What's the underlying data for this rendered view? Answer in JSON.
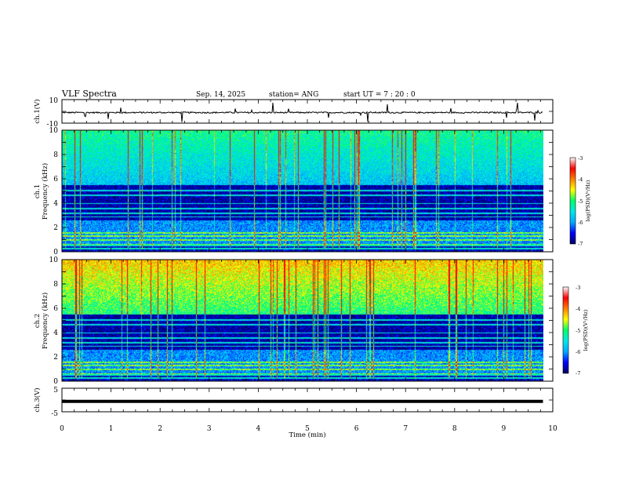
{
  "header": {
    "title": "VLF Spectra",
    "date": "Sep. 14, 2025",
    "station": "station= ANG",
    "start_ut": "start  UT =   7 : 20 : 0"
  },
  "colors": {
    "cmap": [
      "#000060",
      "#0000ff",
      "#00aaff",
      "#00e8e8",
      "#00ff66",
      "#ffff00",
      "#ff7f00",
      "#ff0000",
      "#ffffff"
    ]
  },
  "chart_data": [
    {
      "type": "line",
      "panel": "ch1-voltage",
      "ylabel": "ch.1(V)",
      "ylim": [
        -10,
        10
      ],
      "ytick_labels": [
        "10",
        "-10"
      ],
      "baseline_value": -1,
      "x_range_min": [
        0,
        9.8
      ]
    },
    {
      "type": "heatmap",
      "panel": "ch1-spectrogram",
      "ylabel_line1": "ch.1",
      "ylabel_line2": "Frequency  (kHz)",
      "ylim_khz": [
        0,
        10
      ],
      "ytick_labels": [
        "0",
        "2",
        "4",
        "6",
        "8",
        "10"
      ],
      "colorbar": {
        "label": "log(PSD)(V²/Hz)",
        "range": [
          -7,
          -3
        ],
        "tick_labels": [
          "-3",
          "-4",
          "-5",
          "-6",
          "-7"
        ]
      }
    },
    {
      "type": "heatmap",
      "panel": "ch2-spectrogram",
      "ylabel_line1": "ch.2",
      "ylabel_line2": "Frequency  (kHz)",
      "ylim_khz": [
        0,
        10
      ],
      "ytick_labels": [
        "0",
        "2",
        "4",
        "6",
        "8",
        "10"
      ],
      "colorbar": {
        "label": "log(PSD)(V²/Hz)",
        "range": [
          -7,
          -3
        ],
        "tick_labels": [
          "-3",
          "-4",
          "-5",
          "-6",
          "-7"
        ]
      }
    },
    {
      "type": "line",
      "panel": "ch3-voltage",
      "ylabel": "ch.3(V)",
      "ylim": [
        -5,
        5
      ],
      "ytick_labels": [
        "5",
        "-5"
      ],
      "baseline_value": -0.6,
      "x_range_min": [
        0,
        9.8
      ]
    }
  ],
  "x_axis": {
    "label": "Time  (min)",
    "range": [
      0,
      10
    ],
    "tick_labels": [
      "0",
      "1",
      "2",
      "3",
      "4",
      "5",
      "6",
      "7",
      "8",
      "9",
      "10"
    ]
  }
}
